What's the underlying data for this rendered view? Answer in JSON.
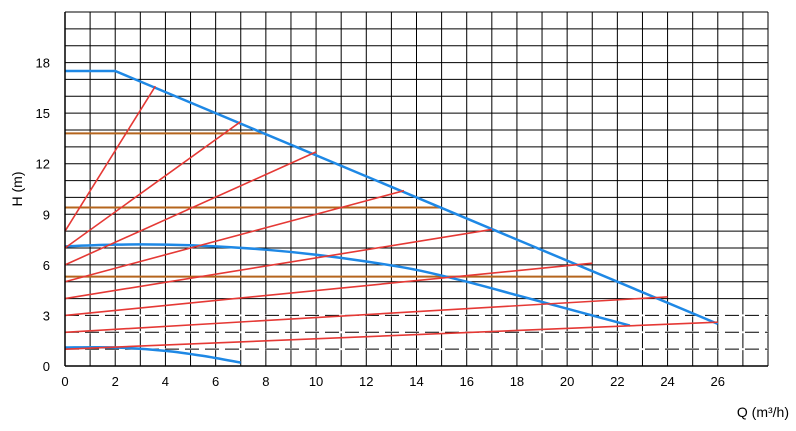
{
  "chart_data": {
    "type": "line",
    "title": "",
    "xlabel": "Q (m³/h)",
    "ylabel": "H (m)",
    "xlim": [
      0,
      28
    ],
    "ylim": [
      0,
      21
    ],
    "x_ticks": [
      0,
      2,
      4,
      6,
      8,
      10,
      12,
      14,
      16,
      18,
      20,
      22,
      24,
      26
    ],
    "y_ticks": [
      0,
      3,
      6,
      9,
      12,
      15,
      18
    ],
    "grid": true,
    "colors": {
      "grid": "#000000",
      "pump_curve": "#1e88e5",
      "system_curve": "#e53935",
      "brown_line": "#b5651d"
    },
    "series": [
      {
        "name": "pump curve (max)",
        "color_key": "pump_curve",
        "x": [
          0,
          2,
          26
        ],
        "y": [
          17.5,
          17.5,
          2.5
        ]
      },
      {
        "name": "pump curve (mid)",
        "color_key": "pump_curve",
        "x": [
          0,
          2,
          4,
          6,
          8,
          10,
          12,
          14,
          16,
          18,
          20,
          22.5
        ],
        "y": [
          7.1,
          7.2,
          7.2,
          7.1,
          6.9,
          6.6,
          6.2,
          5.7,
          5.0,
          4.2,
          3.4,
          2.4
        ]
      },
      {
        "name": "pump curve (min)",
        "color_key": "pump_curve",
        "x": [
          0,
          2,
          4,
          5.5,
          7
        ],
        "y": [
          1.1,
          1.1,
          0.9,
          0.6,
          0.2
        ]
      },
      {
        "name": "system line 1",
        "color_key": "system_curve",
        "x": [
          0,
          26
        ],
        "y": [
          1,
          2.6
        ]
      },
      {
        "name": "system line 2",
        "color_key": "system_curve",
        "x": [
          0,
          24
        ],
        "y": [
          2,
          4.1
        ]
      },
      {
        "name": "system line 3",
        "color_key": "system_curve",
        "x": [
          0,
          21
        ],
        "y": [
          3,
          6.1
        ]
      },
      {
        "name": "system line 4",
        "color_key": "system_curve",
        "x": [
          0,
          17
        ],
        "y": [
          4,
          8.1
        ]
      },
      {
        "name": "system line 5",
        "color_key": "system_curve",
        "x": [
          0,
          13.5
        ],
        "y": [
          5,
          10.4
        ]
      },
      {
        "name": "system line 6",
        "color_key": "system_curve",
        "x": [
          0,
          10
        ],
        "y": [
          6,
          12.7
        ]
      },
      {
        "name": "system line 7",
        "color_key": "system_curve",
        "x": [
          0,
          7
        ],
        "y": [
          7,
          14.5
        ]
      },
      {
        "name": "system line 8",
        "color_key": "system_curve",
        "x": [
          0,
          3.6
        ],
        "y": [
          8,
          16.6
        ]
      },
      {
        "name": "horizontal 13.8",
        "color_key": "brown_line",
        "x": [
          0,
          8
        ],
        "y": [
          13.8,
          13.8
        ]
      },
      {
        "name": "horizontal 9.4",
        "color_key": "brown_line",
        "x": [
          0,
          15
        ],
        "y": [
          9.4,
          9.4
        ]
      },
      {
        "name": "horizontal 5.3",
        "color_key": "brown_line",
        "x": [
          0,
          21
        ],
        "y": [
          5.3,
          5.3
        ]
      }
    ],
    "dashed_lines": [
      {
        "name": "dashed 1",
        "y": 1
      },
      {
        "name": "dashed 2",
        "y": 2
      },
      {
        "name": "dashed 3",
        "y": 3
      }
    ]
  }
}
